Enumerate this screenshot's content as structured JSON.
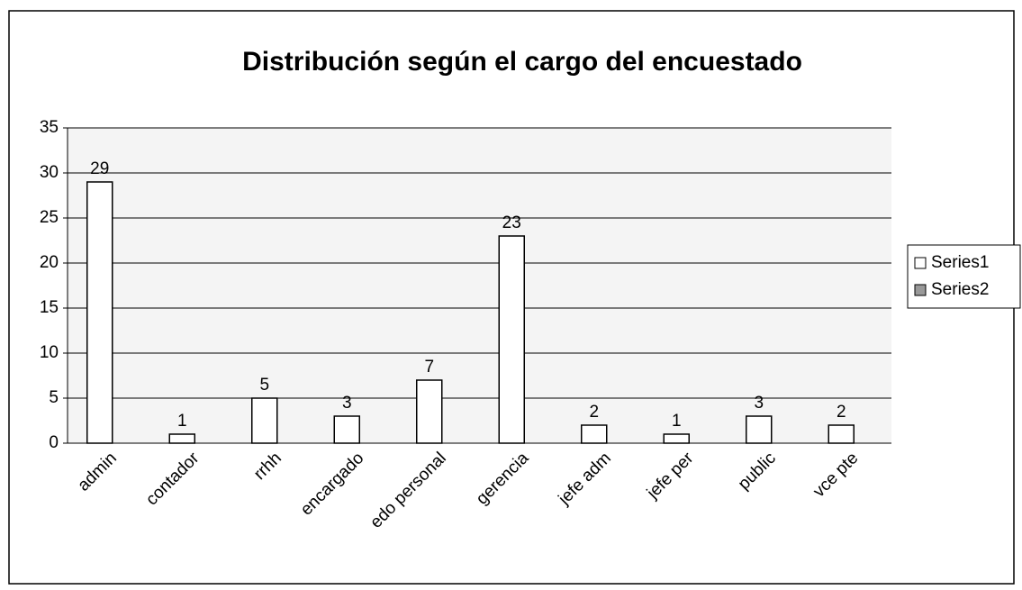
{
  "chart_data": {
    "type": "bar",
    "title": "Distribución según el cargo del encuestado",
    "categories": [
      "admin",
      "contador",
      "rrhh",
      "encargado",
      "edo personal",
      "gerencia",
      "jefe adm",
      "jefe per",
      "public",
      "vce pte"
    ],
    "series": [
      {
        "name": "Series1",
        "color": "#ffffff",
        "values": [
          29,
          1,
          5,
          3,
          7,
          23,
          2,
          1,
          3,
          2
        ]
      },
      {
        "name": "Series2",
        "color": "#999999",
        "values": [
          null,
          null,
          null,
          null,
          null,
          null,
          null,
          null,
          null,
          null
        ]
      }
    ],
    "ylim": [
      0,
      35
    ],
    "yticks": [
      0,
      5,
      10,
      15,
      20,
      25,
      30,
      35
    ],
    "grid": true,
    "legend": "right"
  }
}
